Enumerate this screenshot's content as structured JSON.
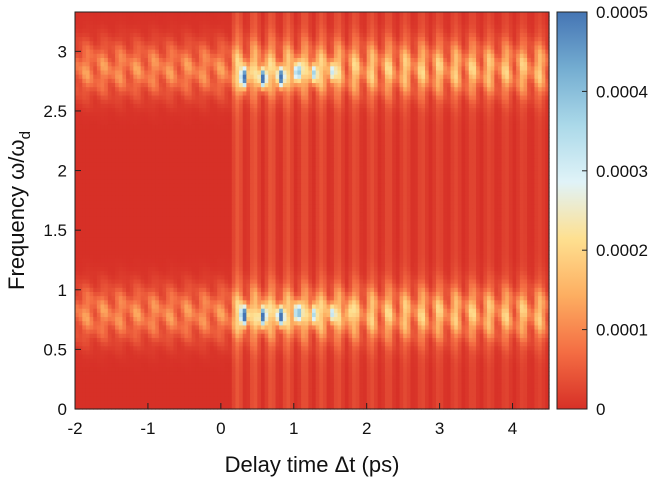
{
  "chart_data": {
    "type": "heatmap",
    "title": "",
    "xlabel": "Delay time Δt (ps)",
    "ylabel_main": "Frequency ω/ω",
    "ylabel_sub": "d",
    "xlim": [
      -2,
      4.5
    ],
    "ylim": [
      0,
      3.33
    ],
    "x_ticks": [
      -2,
      -1,
      0,
      1,
      2,
      3,
      4
    ],
    "x_tick_labels": [
      "-2",
      "-1",
      "0",
      "1",
      "2",
      "3",
      "4"
    ],
    "y_ticks": [
      0,
      0.5,
      1,
      1.5,
      2,
      2.5,
      3
    ],
    "y_tick_labels": [
      "0",
      "0.5",
      "1",
      "1.5",
      "2",
      "2.5",
      "3"
    ],
    "colorbar": {
      "range": [
        0,
        0.0005
      ],
      "ticks": [
        0,
        0.0001,
        0.0002,
        0.0003,
        0.0004,
        0.0005
      ],
      "tick_labels": [
        "0",
        "0.0001",
        "0.0002",
        "0.0003",
        "0.0004",
        "0.0005"
      ],
      "colors": [
        "#d73027",
        "#f46d43",
        "#fdae61",
        "#fee090",
        "#e0f3f8",
        "#abd9e9",
        "#74add1",
        "#4575b4"
      ]
    },
    "bands": [
      {
        "center": 0.8,
        "width": 0.22
      },
      {
        "center": 2.85,
        "width": 0.22
      }
    ],
    "hotspots": [
      {
        "x": 0.32,
        "y": 0.78,
        "value": 0.0005
      },
      {
        "x": 0.58,
        "y": 0.78,
        "value": 0.0005
      },
      {
        "x": 0.82,
        "y": 0.78,
        "value": 0.00048
      },
      {
        "x": 1.05,
        "y": 0.8,
        "value": 0.0004
      },
      {
        "x": 1.28,
        "y": 0.8,
        "value": 0.0003
      },
      {
        "x": 1.52,
        "y": 0.8,
        "value": 0.00022
      },
      {
        "x": 1.75,
        "y": 0.8,
        "value": 0.00015
      },
      {
        "x": 0.32,
        "y": 2.78,
        "value": 0.0005
      },
      {
        "x": 0.58,
        "y": 2.78,
        "value": 0.0005
      },
      {
        "x": 0.82,
        "y": 2.78,
        "value": 0.00048
      },
      {
        "x": 1.05,
        "y": 2.82,
        "value": 0.0004
      },
      {
        "x": 1.28,
        "y": 2.82,
        "value": 0.0003
      },
      {
        "x": 1.52,
        "y": 2.82,
        "value": 0.00022
      }
    ]
  }
}
